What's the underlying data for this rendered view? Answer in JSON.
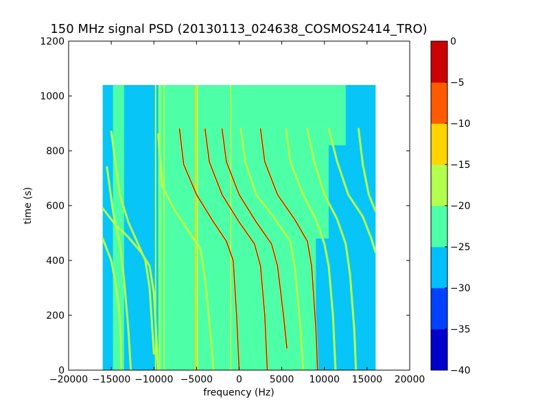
{
  "chart_data": {
    "type": "heatmap",
    "title": "150 MHz signal PSD (20130113_024638_COSMOS2414_TRO)",
    "xlabel": "frequency (Hz)",
    "ylabel": "time (s)",
    "xlim": [
      -20000,
      20000
    ],
    "ylim": [
      0,
      1200
    ],
    "xticks": [
      -20000,
      -15000,
      -10000,
      -5000,
      0,
      5000,
      10000,
      15000,
      20000
    ],
    "xtick_labels": [
      "−20000",
      "−15000",
      "−10000",
      "−5000",
      "0",
      "5000",
      "10000",
      "15000",
      "20000"
    ],
    "yticks": [
      0,
      200,
      400,
      600,
      800,
      1000,
      1200
    ],
    "ytick_labels": [
      "0",
      "200",
      "400",
      "600",
      "800",
      "1000",
      "1200"
    ],
    "data_extent": {
      "x": [
        -16000,
        16000
      ],
      "y": [
        0,
        1040
      ]
    },
    "background_level": -22.5,
    "colorbar": {
      "levels": [
        -40,
        -35,
        -30,
        -25,
        -20,
        -15,
        -10,
        -5,
        0
      ],
      "tick_labels": [
        "−40",
        "−35",
        "−30",
        "−25",
        "−20",
        "−15",
        "−10",
        "−5",
        "0"
      ],
      "colors": [
        "#0000cd",
        "#0040ff",
        "#00bfff",
        "#4dffa6",
        "#b3ff4d",
        "#ffd400",
        "#ff5a00",
        "#cd0000"
      ]
    },
    "noise_regions": [
      {
        "x": [
          -16000,
          -14800
        ],
        "y": [
          0,
          1040
        ],
        "level": -27.5
      },
      {
        "x": [
          -13500,
          -9500
        ],
        "y": [
          0,
          1040
        ],
        "level": -27.5
      },
      {
        "x": [
          9000,
          16000
        ],
        "y": [
          0,
          480
        ],
        "level": -27.5
      },
      {
        "x": [
          10500,
          16000
        ],
        "y": [
          480,
          820
        ],
        "level": -27.5
      },
      {
        "x": [
          12500,
          16000
        ],
        "y": [
          820,
          1040
        ],
        "level": -27.5
      }
    ],
    "vertical_lines": [
      {
        "x": -9800,
        "y": [
          0,
          1040
        ],
        "level": -17.5
      },
      {
        "x": -9300,
        "y": [
          0,
          1040
        ],
        "level": -17.5
      },
      {
        "x": -8800,
        "y": [
          0,
          1040
        ],
        "level": -17.5
      },
      {
        "x": -5100,
        "y": [
          0,
          1040
        ],
        "level": -12.5
      },
      {
        "x": -4900,
        "y": [
          0,
          1040
        ],
        "level": -17.5
      },
      {
        "x": -1000,
        "y": [
          0,
          1040
        ],
        "level": -17.5
      }
    ],
    "series": [
      {
        "points": [
          [
            -15000,
            870
          ],
          [
            -14000,
            640
          ],
          [
            -13000,
            540
          ],
          [
            -12000,
            470
          ],
          [
            -11000,
            400
          ],
          [
            -10500,
            300
          ],
          [
            -10000,
            60
          ]
        ],
        "level": -17.5
      },
      {
        "points": [
          [
            -16000,
            590
          ],
          [
            -14500,
            530
          ],
          [
            -13000,
            485
          ],
          [
            -11500,
            430
          ],
          [
            -10500,
            380
          ],
          [
            -10000,
            280
          ],
          [
            -9500,
            0
          ]
        ],
        "level": -17.5
      },
      {
        "points": [
          [
            -15500,
            740
          ],
          [
            -14800,
            580
          ],
          [
            -14000,
            460
          ],
          [
            -13500,
            330
          ],
          [
            -13000,
            150
          ],
          [
            -12700,
            0
          ]
        ],
        "level": -17.5
      },
      {
        "points": [
          [
            -16000,
            480
          ],
          [
            -15000,
            400
          ],
          [
            -14500,
            320
          ],
          [
            -14000,
            200
          ],
          [
            -13800,
            0
          ]
        ],
        "level": -17.5
      },
      {
        "points": [
          [
            -9500,
            860
          ],
          [
            -9000,
            670
          ],
          [
            -7500,
            580
          ],
          [
            -6000,
            510
          ],
          [
            -4500,
            440
          ],
          [
            -4000,
            330
          ],
          [
            -3500,
            180
          ],
          [
            -3000,
            0
          ]
        ],
        "level": -17.5
      },
      {
        "points": [
          [
            -7000,
            880
          ],
          [
            -6500,
            750
          ],
          [
            -5000,
            640
          ],
          [
            -3000,
            540
          ],
          [
            -1500,
            470
          ],
          [
            -700,
            400
          ],
          [
            -300,
            200
          ],
          [
            0,
            0
          ]
        ],
        "level": -5
      },
      {
        "points": [
          [
            -4000,
            880
          ],
          [
            -3500,
            760
          ],
          [
            -2000,
            640
          ],
          [
            0,
            540
          ],
          [
            1800,
            460
          ],
          [
            2500,
            380
          ],
          [
            3000,
            200
          ],
          [
            3300,
            0
          ]
        ],
        "level": -5
      },
      {
        "points": [
          [
            -2000,
            880
          ],
          [
            -1500,
            760
          ],
          [
            0,
            640
          ],
          [
            2000,
            540
          ],
          [
            3800,
            460
          ],
          [
            4500,
            380
          ],
          [
            5200,
            200
          ],
          [
            5600,
            80
          ]
        ],
        "level": -5
      },
      {
        "points": [
          [
            200,
            880
          ],
          [
            700,
            760
          ],
          [
            2000,
            640
          ],
          [
            4000,
            560
          ],
          [
            6000,
            470
          ],
          [
            6500,
            380
          ],
          [
            7200,
            150
          ],
          [
            7500,
            0
          ]
        ],
        "level": -17.5
      },
      {
        "points": [
          [
            2500,
            880
          ],
          [
            3000,
            760
          ],
          [
            4500,
            640
          ],
          [
            6500,
            550
          ],
          [
            8000,
            470
          ],
          [
            8500,
            380
          ],
          [
            9000,
            150
          ],
          [
            9200,
            0
          ]
        ],
        "level": -5
      },
      {
        "points": [
          [
            5500,
            880
          ],
          [
            6000,
            760
          ],
          [
            7500,
            640
          ],
          [
            9000,
            550
          ],
          [
            10000,
            460
          ],
          [
            10500,
            380
          ],
          [
            11000,
            200
          ],
          [
            11300,
            0
          ]
        ],
        "level": -17.5
      },
      {
        "points": [
          [
            8000,
            880
          ],
          [
            8800,
            760
          ],
          [
            10000,
            640
          ],
          [
            11500,
            550
          ],
          [
            12500,
            460
          ],
          [
            13000,
            350
          ],
          [
            13500,
            150
          ],
          [
            13700,
            0
          ]
        ],
        "level": -17.5
      },
      {
        "points": [
          [
            10500,
            880
          ],
          [
            11500,
            760
          ],
          [
            12800,
            640
          ],
          [
            14500,
            560
          ],
          [
            15500,
            480
          ],
          [
            16000,
            430
          ]
        ],
        "level": -17.5
      },
      {
        "points": [
          [
            14000,
            880
          ],
          [
            14500,
            750
          ],
          [
            15200,
            640
          ],
          [
            16000,
            580
          ]
        ],
        "level": -17.5
      }
    ]
  }
}
